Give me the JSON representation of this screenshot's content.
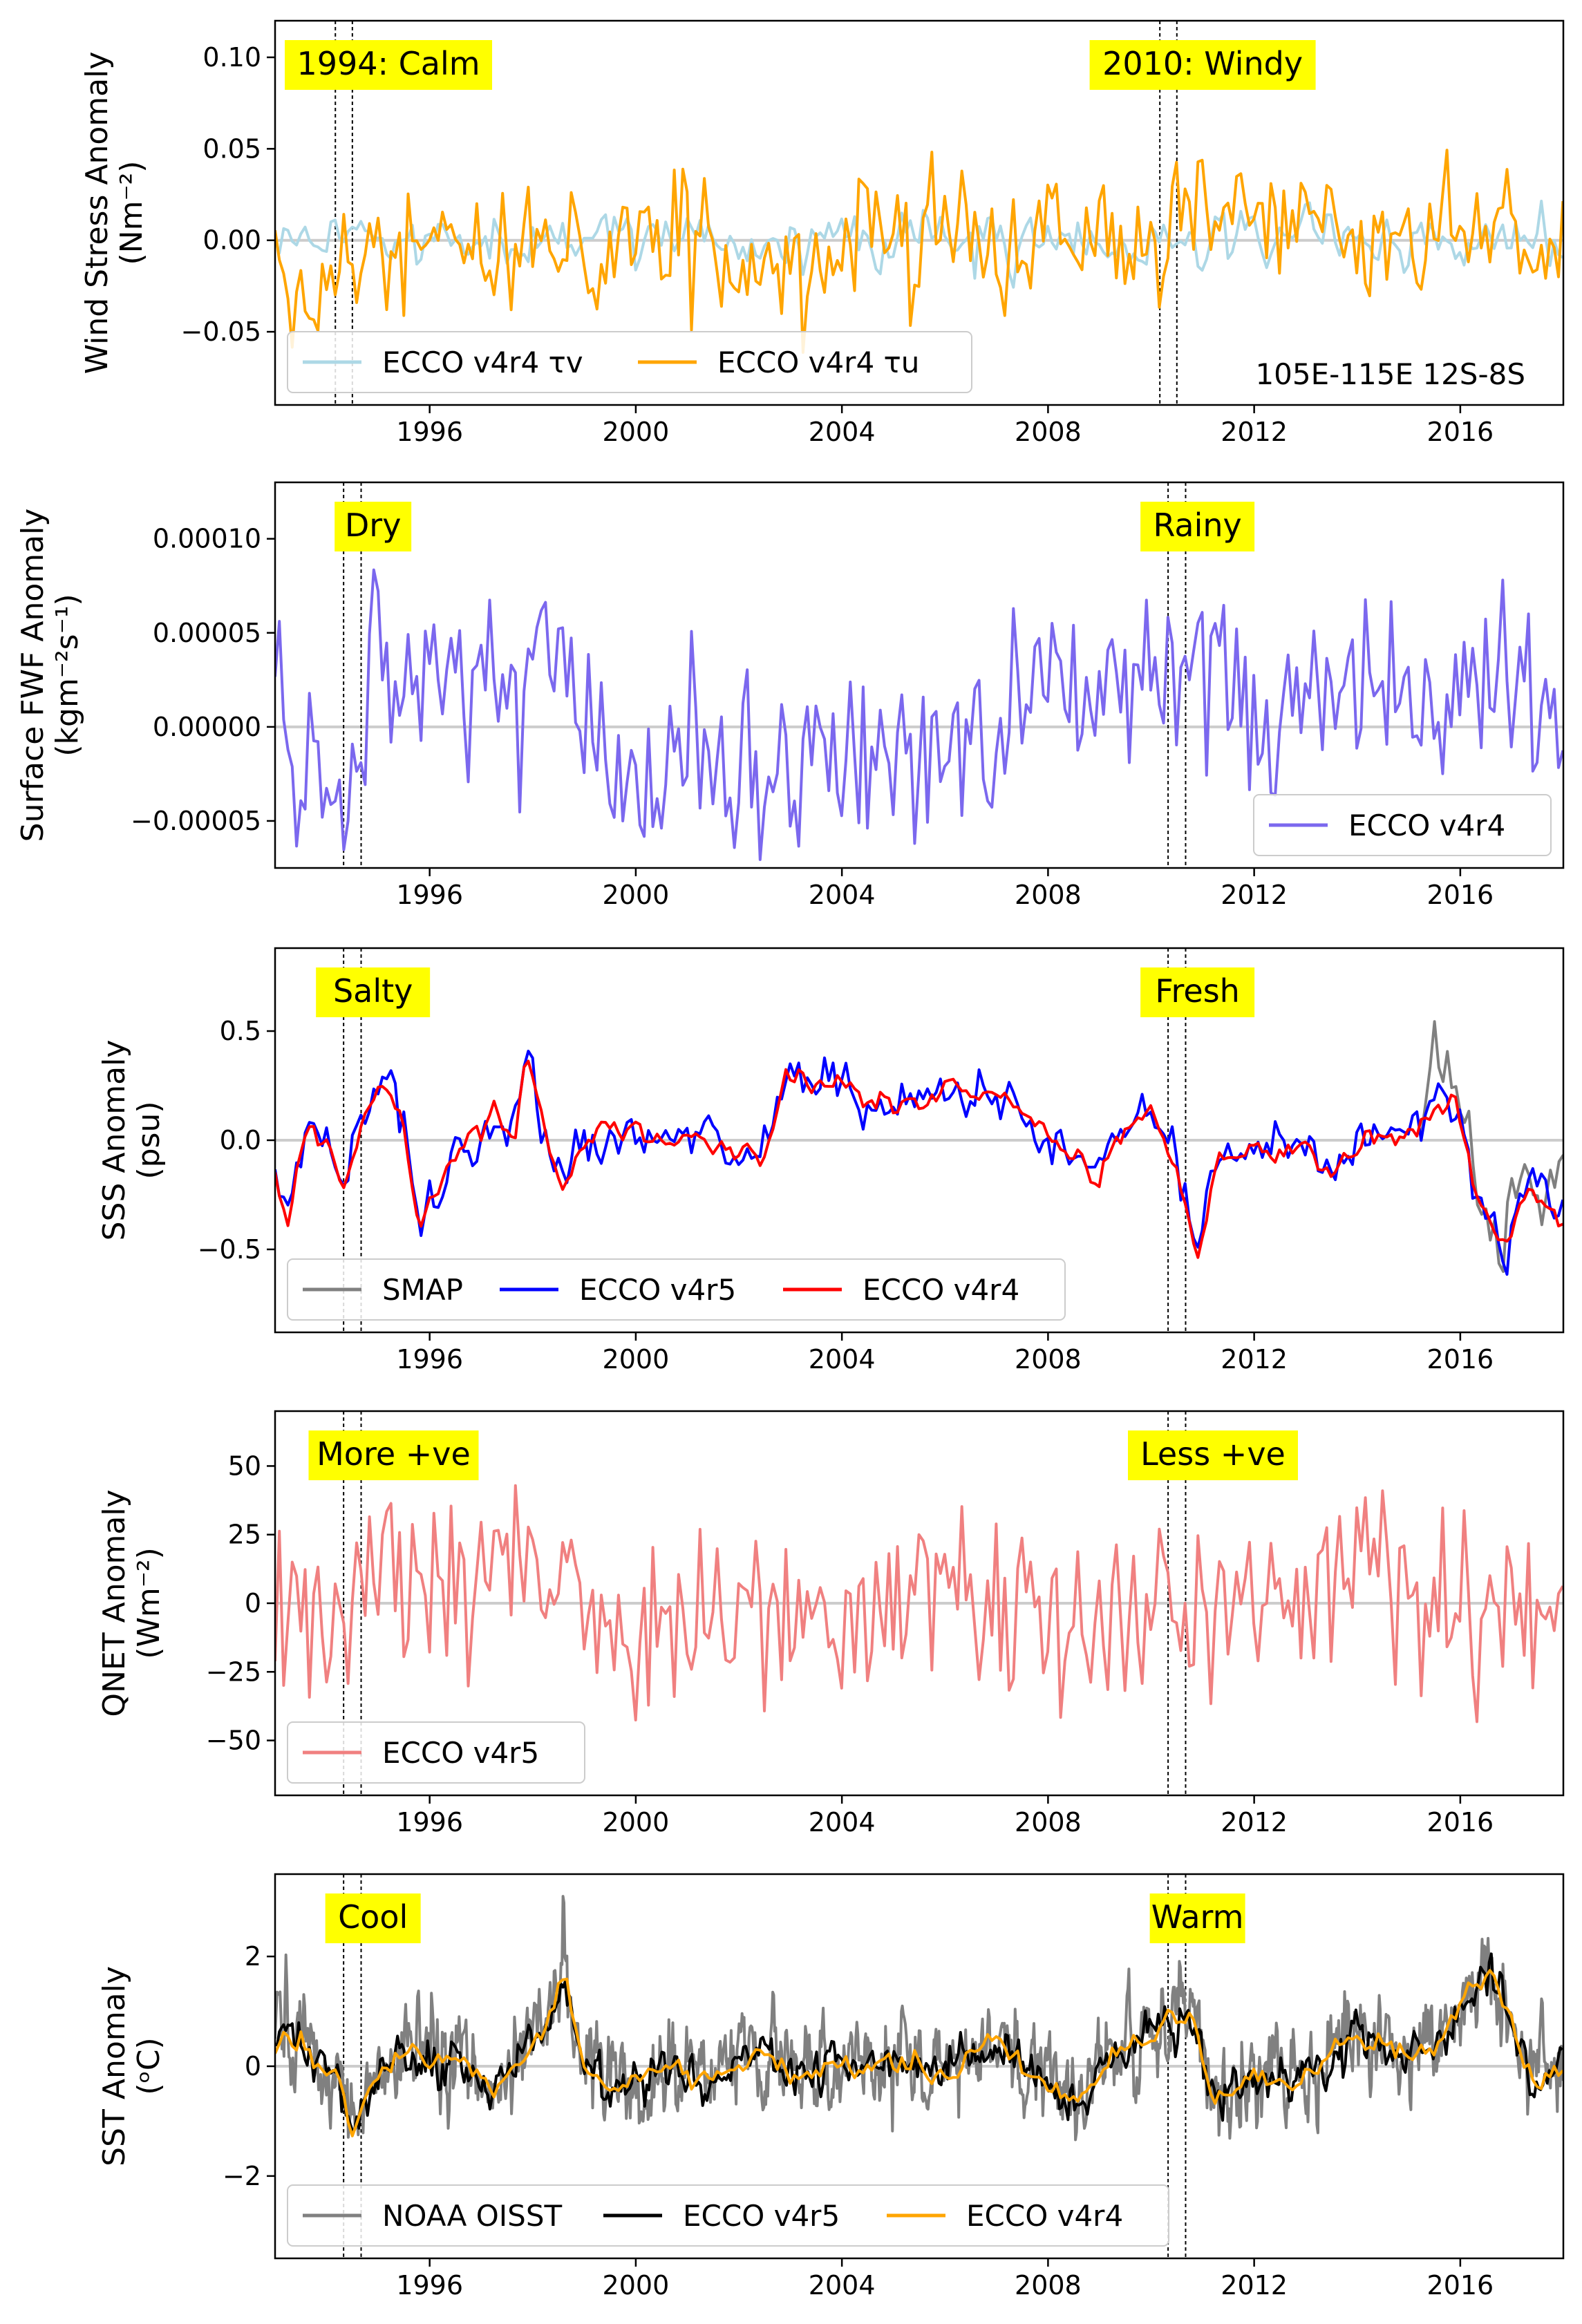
{
  "figure": {
    "xlim": [
      1993.0,
      2018.0
    ],
    "x_ticks": [
      1996,
      2000,
      2004,
      2008,
      2012,
      2016
    ],
    "event_lines": [
      1994.33,
      1994.67,
      2010.33,
      2010.67
    ],
    "event_lines_top": [
      1994.17,
      1994.5,
      2010.17,
      2010.5
    ],
    "colors": {
      "zero_line": "#cccccc",
      "highlight": "#ffff00",
      "axes": "#000000"
    }
  },
  "chart_data": [
    {
      "type": "line",
      "ylabel_lines": [
        "Wind Stress Anomaly",
        "(Nm$^{-2}$)"
      ],
      "ylabel_display": [
        "Wind Stress Anomaly",
        "(Nm⁻²)"
      ],
      "ylim": [
        -0.09,
        0.12
      ],
      "y_ticks": [
        -0.05,
        0.0,
        0.05,
        0.1
      ],
      "y_tick_labels": [
        "−0.05",
        "0.00",
        "0.05",
        "0.10"
      ],
      "annotations": [
        {
          "text": "1994: Calm",
          "x": 1995.2
        },
        {
          "text": "2010: Windy",
          "x": 2011.0
        }
      ],
      "region_label": "105E-115E 12S-8S",
      "legend_position": "lower-left",
      "series": [
        {
          "name": "ECCO v4r4 τv",
          "color": "#add8e6",
          "x_start": 1993.0,
          "x_step": 0.0833,
          "seed": 11,
          "std": 0.008,
          "ar": 0.3,
          "segments": []
        },
        {
          "name": "ECCO v4r4 τu",
          "color": "#ffa500",
          "x_start": 1993.0,
          "x_step": 0.0833,
          "seed": 23,
          "std": 0.018,
          "ar": 0.2,
          "segments": [
            [
              1993.0,
              -0.01
            ],
            [
              1994.2,
              -0.022
            ],
            [
              1995.0,
              0.0
            ],
            [
              1997.0,
              0.005
            ],
            [
              1999.0,
              0.0
            ],
            [
              2001.0,
              -0.005
            ],
            [
              2004.0,
              0.0
            ],
            [
              2008.0,
              0.0
            ],
            [
              2010.0,
              -0.01
            ],
            [
              2010.8,
              0.025
            ],
            [
              2012.0,
              0.01
            ],
            [
              2016.0,
              0.008
            ],
            [
              2018.0,
              0.0
            ]
          ]
        }
      ]
    },
    {
      "type": "line",
      "ylabel_lines": [
        "Surface FWF Anomaly",
        "(kgm$^{-2}$s$^{-1}$)"
      ],
      "ylabel_display": [
        "Surface FWF Anomaly",
        "(kgm⁻²s⁻¹)"
      ],
      "ylim": [
        -7.5e-05,
        0.00013
      ],
      "y_ticks": [
        -5e-05,
        0.0,
        5e-05,
        0.0001
      ],
      "y_tick_labels": [
        "−0.00005",
        "0.00000",
        "0.00005",
        "0.00010"
      ],
      "annotations": [
        {
          "text": "Dry",
          "x": 1994.9
        },
        {
          "text": "Rainy",
          "x": 2010.9
        }
      ],
      "legend_position": "lower-right",
      "series": [
        {
          "name": "ECCO v4r4",
          "color": "#7b68ee",
          "x_start": 1993.0,
          "x_step": 0.0833,
          "seed": 37,
          "std": 2.8e-05,
          "ar": 0.1,
          "segments": [
            [
              1993.0,
              0.0
            ],
            [
              1994.3,
              -3e-05
            ],
            [
              1994.8,
              2e-05
            ],
            [
              1998.5,
              2e-05
            ],
            [
              2001.0,
              -3e-05
            ],
            [
              2006.0,
              0.0
            ],
            [
              2010.5,
              3e-05
            ],
            [
              2012.0,
              1e-05
            ],
            [
              2018.0,
              2e-05
            ]
          ]
        }
      ]
    },
    {
      "type": "line",
      "ylabel_lines": [
        "SSS Anomaly",
        "(psu)"
      ],
      "ylabel_display": [
        "SSS Anomaly",
        "(psu)"
      ],
      "ylim": [
        -0.88,
        0.88
      ],
      "y_ticks": [
        -0.5,
        0.0,
        0.5
      ],
      "y_tick_labels": [
        "−0.5",
        "0.0",
        "0.5"
      ],
      "annotations": [
        {
          "text": "Salty",
          "x": 1994.9
        },
        {
          "text": "Fresh",
          "x": 2010.9
        }
      ],
      "legend_position": "lower-left",
      "base_curve": [
        [
          1993.0,
          -0.15
        ],
        [
          1993.25,
          -0.4
        ],
        [
          1993.6,
          0.05
        ],
        [
          1994.0,
          0.0
        ],
        [
          1994.3,
          -0.25
        ],
        [
          1994.7,
          0.15
        ],
        [
          1995.1,
          0.25
        ],
        [
          1995.5,
          0.1
        ],
        [
          1995.8,
          -0.4
        ],
        [
          1996.2,
          -0.2
        ],
        [
          1996.8,
          0.0
        ],
        [
          1997.3,
          0.1
        ],
        [
          1997.6,
          0.0
        ],
        [
          1997.9,
          0.38
        ],
        [
          1998.3,
          0.0
        ],
        [
          1998.6,
          -0.2
        ],
        [
          1999.0,
          0.0
        ],
        [
          1999.5,
          0.05
        ],
        [
          2000.2,
          0.0
        ],
        [
          2001.0,
          0.05
        ],
        [
          2002.0,
          -0.05
        ],
        [
          2002.5,
          -0.1
        ],
        [
          2002.9,
          0.3
        ],
        [
          2004.0,
          0.25
        ],
        [
          2005.0,
          0.15
        ],
        [
          2006.0,
          0.25
        ],
        [
          2007.0,
          0.2
        ],
        [
          2007.8,
          0.05
        ],
        [
          2008.5,
          -0.1
        ],
        [
          2009.0,
          -0.15
        ],
        [
          2009.5,
          0.05
        ],
        [
          2010.0,
          0.15
        ],
        [
          2010.5,
          -0.1
        ],
        [
          2010.9,
          -0.55
        ],
        [
          2011.3,
          -0.1
        ],
        [
          2012.0,
          -0.05
        ],
        [
          2013.0,
          0.0
        ],
        [
          2013.5,
          -0.2
        ],
        [
          2014.0,
          0.0
        ],
        [
          2015.0,
          0.05
        ],
        [
          2015.5,
          0.15
        ],
        [
          2015.9,
          0.2
        ],
        [
          2016.3,
          -0.25
        ],
        [
          2016.9,
          -0.5
        ],
        [
          2017.3,
          -0.2
        ],
        [
          2018.0,
          -0.35
        ]
      ],
      "series": [
        {
          "name": "SMAP",
          "color": "#808080",
          "x_start": 2015.25,
          "x_step": 0.0833,
          "seed": 5,
          "std": 0.1,
          "ar": 0.3,
          "offset": 0.05,
          "segments": []
        },
        {
          "name": "ECCO v4r5",
          "color": "#0000ff",
          "x_start": 1993.0,
          "x_step": 0.0833,
          "seed": 41,
          "std": 0.06,
          "ar": 0.2,
          "segments": []
        },
        {
          "name": "ECCO v4r4",
          "color": "#ff0000",
          "x_start": 1993.0,
          "x_step": 0.0833,
          "seed": 43,
          "std": 0.03,
          "ar": 0.5,
          "segments": []
        }
      ]
    },
    {
      "type": "line",
      "ylabel_lines": [
        "Q$_{NET}$ Anomaly",
        "(Wm$^{-2}$)"
      ],
      "ylabel_display": [
        "QNET Anomaly",
        "(Wm⁻²)"
      ],
      "ylim": [
        -70.0,
        70.0
      ],
      "y_ticks": [
        -50,
        -25,
        0,
        25,
        50
      ],
      "y_tick_labels": [
        "−50",
        "−25",
        "0",
        "25",
        "50"
      ],
      "annotations": [
        {
          "text": "More +ve",
          "x": 1995.3
        },
        {
          "text": "Less +ve",
          "x": 2011.2
        }
      ],
      "legend_position": "lower-left",
      "series": [
        {
          "name": "ECCO v4r5",
          "color": "#f08080",
          "x_start": 1993.0,
          "x_step": 0.0833,
          "seed": 59,
          "std": 18.0,
          "ar": 0.05,
          "segments": [
            [
              1993.0,
              0.0
            ],
            [
              1994.2,
              -5.0
            ],
            [
              1995.0,
              5.0
            ],
            [
              1998.0,
              5.0
            ],
            [
              1999.0,
              -5.0
            ],
            [
              2008.0,
              0.0
            ],
            [
              2010.6,
              -8.0
            ],
            [
              2012.0,
              0.0
            ],
            [
              2016.0,
              5.0
            ],
            [
              2017.0,
              -10.0
            ],
            [
              2018.0,
              0.0
            ]
          ]
        }
      ]
    },
    {
      "type": "line",
      "ylabel_lines": [
        "SST Anomaly",
        "($^{o}$C)"
      ],
      "ylabel_display": [
        "SST Anomaly",
        "(ᵒC)"
      ],
      "ylim": [
        -3.5,
        3.5
      ],
      "y_ticks": [
        -2,
        0,
        2
      ],
      "y_tick_labels": [
        "−2",
        "0",
        "2"
      ],
      "annotations": [
        {
          "text": "Cool",
          "x": 1994.9
        },
        {
          "text": "Warm",
          "x": 2010.9
        }
      ],
      "legend_position": "lower-left",
      "base_curve": [
        [
          1993.0,
          0.4
        ],
        [
          1993.3,
          0.5
        ],
        [
          1993.8,
          0.0
        ],
        [
          1994.2,
          0.0
        ],
        [
          1994.5,
          -1.3
        ],
        [
          1994.9,
          -0.2
        ],
        [
          1995.5,
          0.3
        ],
        [
          1996.0,
          0.0
        ],
        [
          1996.5,
          0.2
        ],
        [
          1997.2,
          -0.5
        ],
        [
          1997.6,
          0.0
        ],
        [
          1998.3,
          0.8
        ],
        [
          1998.6,
          1.6
        ],
        [
          1999.0,
          0.0
        ],
        [
          1999.5,
          -0.4
        ],
        [
          2000.5,
          0.0
        ],
        [
          2001.5,
          -0.3
        ],
        [
          2002.5,
          0.3
        ],
        [
          2003.0,
          -0.2
        ],
        [
          2004.0,
          0.0
        ],
        [
          2005.0,
          0.1
        ],
        [
          2006.0,
          -0.2
        ],
        [
          2007.0,
          0.6
        ],
        [
          2007.8,
          -0.3
        ],
        [
          2008.6,
          -0.7
        ],
        [
          2009.3,
          0.3
        ],
        [
          2010.0,
          0.6
        ],
        [
          2010.4,
          0.8
        ],
        [
          2010.8,
          1.0
        ],
        [
          2011.2,
          -0.7
        ],
        [
          2012.0,
          -0.2
        ],
        [
          2012.7,
          -0.3
        ],
        [
          2013.3,
          0.0
        ],
        [
          2014.0,
          0.6
        ],
        [
          2015.0,
          0.2
        ],
        [
          2015.6,
          0.4
        ],
        [
          2016.1,
          1.2
        ],
        [
          2016.6,
          1.75
        ],
        [
          2017.1,
          0.5
        ],
        [
          2017.5,
          -0.4
        ],
        [
          2018.0,
          0.0
        ]
      ],
      "series": [
        {
          "name": "NOAA OISST",
          "color": "#808080",
          "x_start": 1993.0,
          "x_step": 0.0192,
          "seed": 71,
          "std": 0.45,
          "ar": 0.6,
          "segments": []
        },
        {
          "name": "ECCO v4r5",
          "color": "#000000",
          "x_start": 1993.0,
          "x_step": 0.0417,
          "seed": 73,
          "std": 0.2,
          "ar": 0.4,
          "segments": []
        },
        {
          "name": "ECCO v4r4",
          "color": "#ffa500",
          "x_start": 1993.0,
          "x_step": 0.0833,
          "seed": 79,
          "std": 0.1,
          "ar": 0.3,
          "segments": []
        }
      ]
    }
  ]
}
